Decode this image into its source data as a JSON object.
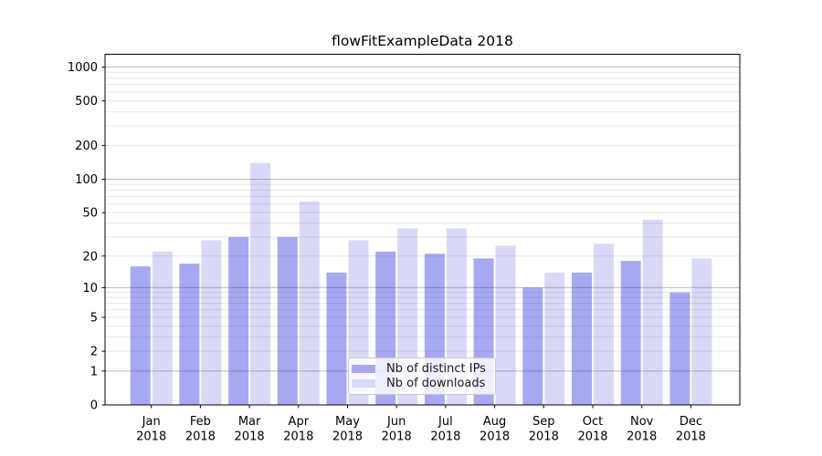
{
  "figure": {
    "title": "flowFitExampleData 2018"
  },
  "chart_data": {
    "type": "bar",
    "title": "flowFitExampleData 2018",
    "xlabel": "",
    "ylabel": "",
    "categories": [
      "Jan",
      "Feb",
      "Mar",
      "Apr",
      "May",
      "Jun",
      "Jul",
      "Aug",
      "Sep",
      "Oct",
      "Nov",
      "Dec"
    ],
    "x_year_label": "2018",
    "series": [
      {
        "name": "Nb of distinct IPs",
        "values": [
          16,
          17,
          30,
          30,
          14,
          22,
          21,
          19,
          10,
          14,
          18,
          9
        ],
        "fill": "rgba(26,26,220,0.38)",
        "swatch_color": "#a8a8f4"
      },
      {
        "name": "Nb of downloads",
        "values": [
          22,
          28,
          140,
          63,
          28,
          36,
          36,
          25,
          14,
          26,
          43,
          19
        ],
        "fill": "rgba(18,18,205,0.16)",
        "swatch_color": "#d9d9f8"
      }
    ],
    "y_scale": "log1p",
    "ylim": [
      0,
      1300
    ],
    "y_ticks": [
      0,
      1,
      2,
      5,
      10,
      20,
      50,
      100,
      200,
      500,
      1000
    ],
    "grid": true,
    "major_gridlines": [
      1,
      10,
      100,
      1000
    ],
    "minor_gridlines": [
      2,
      3,
      4,
      5,
      6,
      7,
      8,
      9,
      20,
      30,
      40,
      50,
      60,
      70,
      80,
      90,
      200,
      300,
      400,
      500,
      600,
      700,
      800,
      900
    ],
    "legend_position": "lower-center",
    "colors": {
      "grid_major": "#bcbcbc",
      "grid_minor": "#e8e8e8",
      "axis": "#000000",
      "text": "#000000"
    }
  }
}
